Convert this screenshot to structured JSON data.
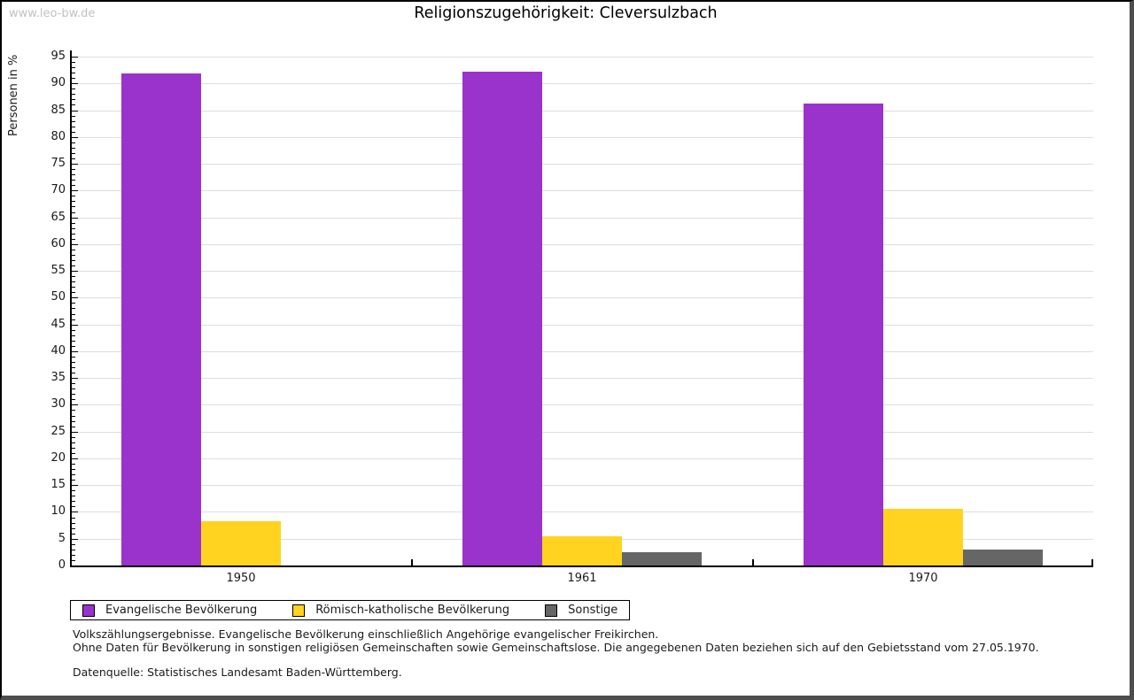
{
  "watermark": "www.leo-bw.de",
  "title": "Religionszugehörigkeit: Cleversulzbach",
  "chart_data": {
    "type": "bar",
    "title": "Religionszugehörigkeit: Cleversulzbach",
    "categories": [
      "1950",
      "1961",
      "1970"
    ],
    "series": [
      {
        "name": "Evangelische Bevölkerung",
        "color": "#9933cc",
        "values": [
          91.8,
          92.2,
          86.2
        ]
      },
      {
        "name": "Römisch-katholische Bevölkerung",
        "color": "#ffd320",
        "values": [
          8.2,
          5.4,
          10.6
        ]
      },
      {
        "name": "Sonstige",
        "color": "#666666",
        "values": [
          0,
          2.5,
          3.0
        ]
      }
    ],
    "ylabel": "Personen in %",
    "xlabel": "",
    "ylim": [
      0,
      95
    ],
    "ytick_major_step": 5,
    "ytick_minor_step": 1,
    "grid": true,
    "legend_position": "bottom",
    "gridline_color": "#dedede"
  },
  "footnotes": {
    "line1": "Volkszählungsergebnisse. Evangelische Bevölkerung einschließlich Angehörige evangelischer Freikirchen.",
    "line2": "Ohne Daten für Bevölkerung in sonstigen religiösen Gemeinschaften sowie Gemeinschaftslose. Die angegebenen Daten beziehen sich auf den Gebietsstand vom 27.05.1970.",
    "source": "Datenquelle: Statistisches Landesamt Baden-Württemberg."
  }
}
